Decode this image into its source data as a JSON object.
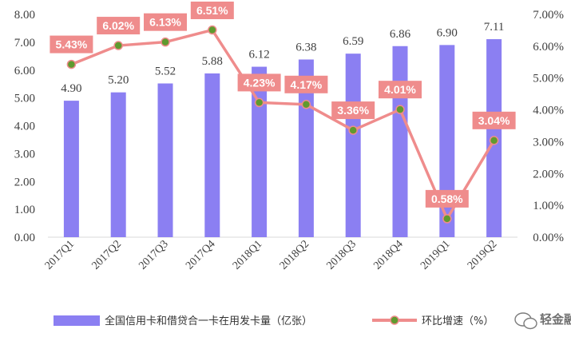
{
  "chart_data": {
    "type": "bar",
    "categories": [
      "2017Q1",
      "2017Q2",
      "2017Q3",
      "2017Q4",
      "2018Q1",
      "2018Q2",
      "2018Q3",
      "2018Q4",
      "2019Q1",
      "2019Q2"
    ],
    "series": [
      {
        "name": "全国信用卡和借贷合一卡在用发卡量（亿张）",
        "type": "bar",
        "axis": "left",
        "values": [
          4.9,
          5.2,
          5.52,
          5.88,
          6.12,
          6.38,
          6.59,
          6.86,
          6.9,
          7.11
        ],
        "labels": [
          "4.90",
          "5.20",
          "5.52",
          "5.88",
          "6.12",
          "6.38",
          "6.59",
          "6.86",
          "6.90",
          "7.11"
        ],
        "color": "#8b7ff2"
      },
      {
        "name": "环比增速（%）",
        "type": "line",
        "axis": "right",
        "values": [
          5.43,
          6.02,
          6.13,
          6.51,
          4.23,
          4.17,
          3.36,
          4.01,
          0.58,
          3.04
        ],
        "labels": [
          "5.43%",
          "6.02%",
          "6.13%",
          "6.51%",
          "4.23%",
          "4.17%",
          "3.36%",
          "4.01%",
          "0.58%",
          "3.04%"
        ],
        "color": "#ef8c8c",
        "marker_color": "#5f9a2f"
      }
    ],
    "left_axis": {
      "ylim": [
        0,
        8
      ],
      "ticks": [
        "0.00",
        "1.00",
        "2.00",
        "3.00",
        "4.00",
        "5.00",
        "6.00",
        "7.00",
        "8.00"
      ]
    },
    "right_axis": {
      "ylim": [
        0,
        7
      ],
      "ticks": [
        "0.00%",
        "1.00%",
        "2.00%",
        "3.00%",
        "4.00%",
        "5.00%",
        "6.00%",
        "7.00%"
      ]
    },
    "grid": false,
    "legend_position": "bottom"
  },
  "legend": {
    "bar_label": "全国信用卡和借贷合一卡在用发卡量（亿张）",
    "line_label": "环比增速（%）"
  },
  "watermark": {
    "text": "轻金融",
    "icon": "wechat-icon"
  }
}
